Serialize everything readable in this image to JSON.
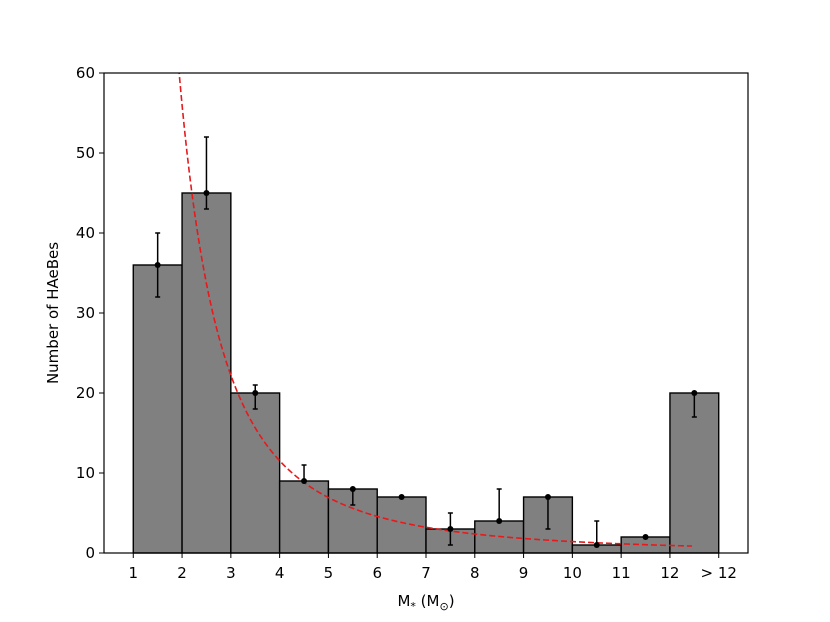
{
  "chart_data": {
    "type": "bar",
    "xlabel": "M",
    "xlabel_subscript": "*",
    "xlabel_unit": "(M",
    "xlabel_unit_subscript": "⊙",
    "xlabel_unit_close": ")",
    "ylabel": "Number of HAeBes",
    "ylim": [
      0,
      60
    ],
    "yticks": [
      0,
      10,
      20,
      30,
      40,
      50,
      60
    ],
    "xticks": [
      "1",
      "2",
      "3",
      "4",
      "5",
      "6",
      "7",
      "8",
      "9",
      "10",
      "11",
      "12",
      "> 12"
    ],
    "bins": [
      {
        "range": "1-2",
        "value": 36,
        "err_low": 32,
        "err_high": 40
      },
      {
        "range": "2-3",
        "value": 45,
        "err_low": 43,
        "err_high": 52
      },
      {
        "range": "3-4",
        "value": 20,
        "err_low": 18,
        "err_high": 21
      },
      {
        "range": "4-5",
        "value": 9,
        "err_low": 9,
        "err_high": 11
      },
      {
        "range": "5-6",
        "value": 8,
        "err_low": 6,
        "err_high": 8
      },
      {
        "range": "6-7",
        "value": 7,
        "err_low": 7,
        "err_high": 7
      },
      {
        "range": "7-8",
        "value": 3,
        "err_low": 1,
        "err_high": 5
      },
      {
        "range": "8-9",
        "value": 4,
        "err_low": 4,
        "err_high": 8
      },
      {
        "range": "9-10",
        "value": 7,
        "err_low": 3,
        "err_high": 7
      },
      {
        "range": "10-11",
        "value": 1,
        "err_low": 1,
        "err_high": 4
      },
      {
        "range": "11-12",
        "value": 2,
        "err_low": 2,
        "err_high": 2
      },
      {
        "range": ">12",
        "value": 20,
        "err_low": 17,
        "err_high": 20
      }
    ],
    "fit_curve": {
      "style": "dashed",
      "color": "#e8191b",
      "form": "power-law",
      "amplitude": 272,
      "exponent": -2.28
    },
    "bar_color": "#808080",
    "grid": false
  }
}
